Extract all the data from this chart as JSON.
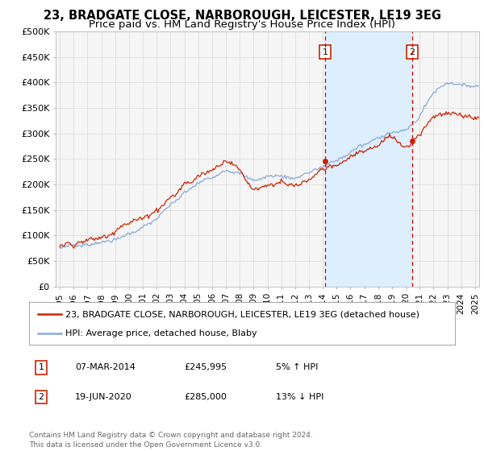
{
  "title": "23, BRADGATE CLOSE, NARBOROUGH, LEICESTER, LE19 3EG",
  "subtitle": "Price paid vs. HM Land Registry's House Price Index (HPI)",
  "ylabel_ticks": [
    "£0",
    "£50K",
    "£100K",
    "£150K",
    "£200K",
    "£250K",
    "£300K",
    "£350K",
    "£400K",
    "£450K",
    "£500K"
  ],
  "ytick_values": [
    0,
    50000,
    100000,
    150000,
    200000,
    250000,
    300000,
    350000,
    400000,
    450000,
    500000
  ],
  "xlim_start": 1994.7,
  "xlim_end": 2025.3,
  "ylim": [
    0,
    500000
  ],
  "purchase1_date": 2014.17,
  "purchase1_price": 245995,
  "purchase1_label": "1",
  "purchase2_date": 2020.46,
  "purchase2_price": 285000,
  "purchase2_label": "2",
  "vline_color": "#cc0000",
  "line1_color": "#cc2200",
  "line2_color": "#88aadd",
  "background_color": "#ffffff",
  "plot_bg_color": "#f5f5f5",
  "grid_color": "#dddddd",
  "legend_line1": "23, BRADGATE CLOSE, NARBOROUGH, LEICESTER, LE19 3EG (detached house)",
  "legend_line2": "HPI: Average price, detached house, Blaby",
  "annotation1_date": "07-MAR-2014",
  "annotation1_price": "£245,995",
  "annotation1_hpi": "5% ↑ HPI",
  "annotation2_date": "19-JUN-2020",
  "annotation2_price": "£285,000",
  "annotation2_hpi": "13% ↓ HPI",
  "footer": "Contains HM Land Registry data © Crown copyright and database right 2024.\nThis data is licensed under the Open Government Licence v3.0.",
  "highlight_color": "#ddeeff",
  "title_fontsize": 10.5,
  "subtitle_fontsize": 9.5,
  "tick_fontsize": 8,
  "legend_fontsize": 8,
  "annot_fontsize": 8,
  "footer_fontsize": 6.5
}
